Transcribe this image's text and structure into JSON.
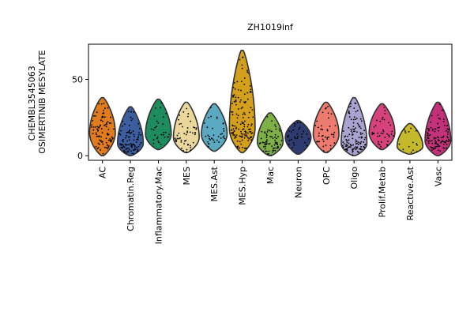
{
  "chart_data": {
    "type": "violin",
    "title": "ZH1019inf",
    "ylabel_lines": [
      "CHEMBL3545063",
      "OSIMERTINIB MESYLATE"
    ],
    "xlabel": "",
    "ylim": [
      -3,
      73
    ],
    "yticks": [
      0,
      50
    ],
    "grid": false,
    "legend": "none",
    "categories": [
      "AC",
      "Chromatin.Reg",
      "Inflammatory.Mac",
      "MES",
      "MES.Ast",
      "MES.Hyp",
      "Mac",
      "Neuron",
      "OPC",
      "Oligo",
      "Prolif.Metab",
      "Reactive.Ast",
      "Vasc"
    ],
    "colors": [
      "#e07b1e",
      "#3c5e9e",
      "#1d8c5e",
      "#ead79c",
      "#5ba9c0",
      "#d4a01c",
      "#7fb046",
      "#2f3a6e",
      "#ec7a6e",
      "#a9a4cf",
      "#d6437c",
      "#c4b92a",
      "#c2317a"
    ],
    "series": [
      {
        "name": "AC",
        "min": 0,
        "max": 38,
        "mode": 15,
        "npoints": 90
      },
      {
        "name": "Chromatin.Reg",
        "min": 0,
        "max": 32,
        "mode": 8,
        "npoints": 95
      },
      {
        "name": "Inflammatory.Mac",
        "min": 4,
        "max": 37,
        "mode": 14,
        "npoints": 30
      },
      {
        "name": "MES",
        "min": 2,
        "max": 35,
        "mode": 12,
        "npoints": 50
      },
      {
        "name": "MES.Ast",
        "min": 3,
        "max": 34,
        "mode": 14,
        "npoints": 35
      },
      {
        "name": "MES.Hyp",
        "min": 2,
        "max": 69,
        "mode": 18,
        "npoints": 140
      },
      {
        "name": "Mac",
        "min": 0,
        "max": 28,
        "mode": 9,
        "npoints": 75
      },
      {
        "name": "Neuron",
        "min": 1,
        "max": 23,
        "mode": 12,
        "npoints": 30
      },
      {
        "name": "OPC",
        "min": 2,
        "max": 35,
        "mode": 14,
        "npoints": 45
      },
      {
        "name": "Oligo",
        "min": 0,
        "max": 38,
        "mode": 8,
        "npoints": 120
      },
      {
        "name": "Prolif.Metab",
        "min": 4,
        "max": 34,
        "mode": 15,
        "npoints": 40
      },
      {
        "name": "Reactive.Ast",
        "min": 1,
        "max": 21,
        "mode": 6,
        "npoints": 15
      },
      {
        "name": "Vasc",
        "min": 0,
        "max": 35,
        "mode": 10,
        "npoints": 95
      }
    ]
  }
}
